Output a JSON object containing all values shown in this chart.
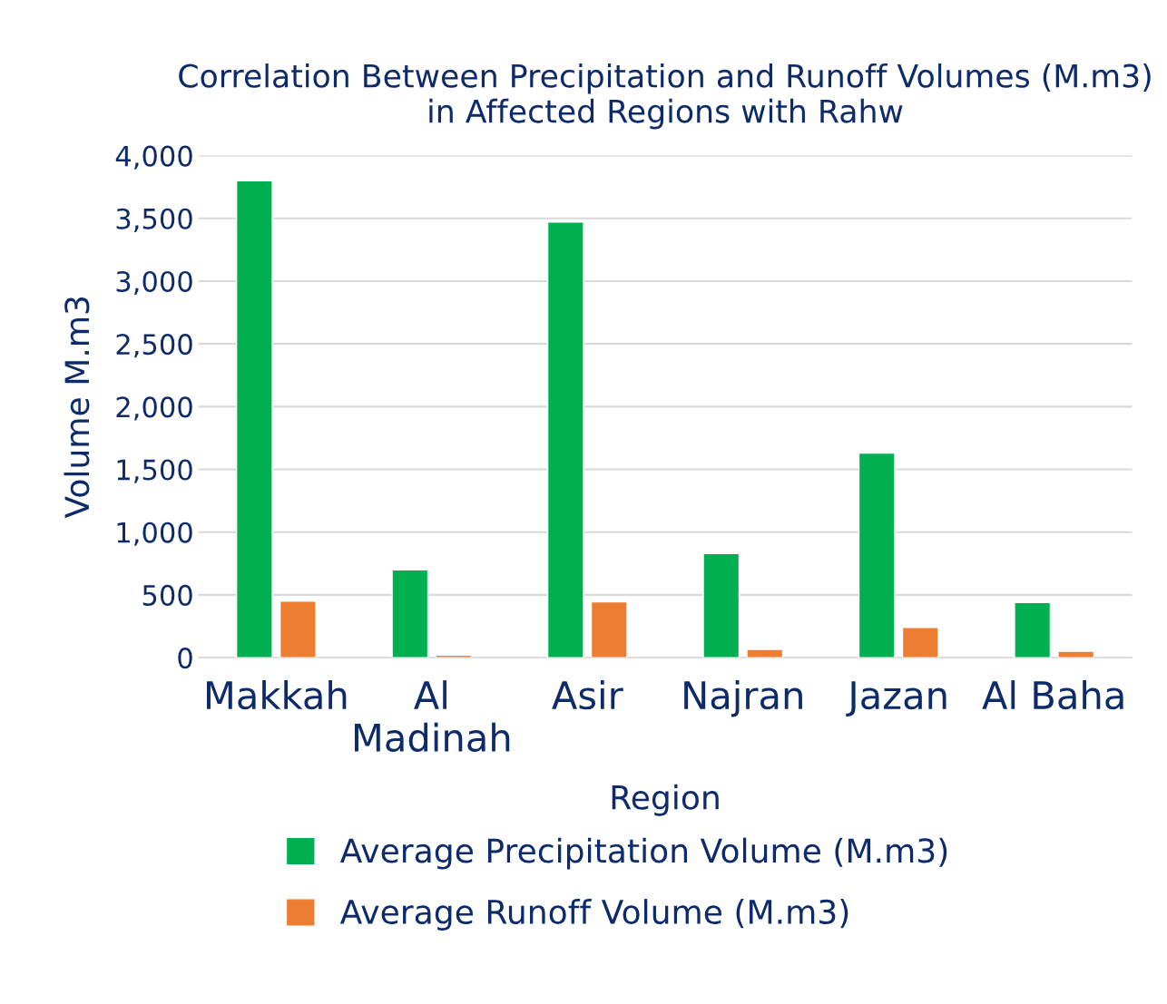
{
  "chart_data": {
    "type": "bar",
    "title": "Correlation Between Precipitation and Runoff Volumes (M.m3) in Affected Regions with Rahw",
    "xlabel": "Region",
    "ylabel": "Volume M.m3",
    "categories": [
      "Makkah",
      "Al\nMadinah",
      "Asir",
      "Najran",
      "Jazan",
      "Al Baha"
    ],
    "series": [
      {
        "name": "Average Precipitation Volume (M.m3)",
        "color": "#00b050",
        "values": [
          3800,
          700,
          3470,
          830,
          1630,
          440
        ]
      },
      {
        "name": "Average Runoff Volume (M.m3)",
        "color": "#ed7d31",
        "values": [
          450,
          20,
          445,
          65,
          240,
          50
        ]
      }
    ],
    "ylim": [
      0,
      4000
    ],
    "yticks": [
      {
        "value": 0,
        "label": "0"
      },
      {
        "value": 500,
        "label": "500"
      },
      {
        "value": 1000,
        "label": "1,000"
      },
      {
        "value": 1500,
        "label": "1,500"
      },
      {
        "value": 2000,
        "label": "2,000"
      },
      {
        "value": 2500,
        "label": "2,500"
      },
      {
        "value": 3000,
        "label": "3,000"
      },
      {
        "value": 3500,
        "label": "3,500"
      },
      {
        "value": 4000,
        "label": "4,000"
      }
    ],
    "grid": "y",
    "legend": "bottom"
  }
}
